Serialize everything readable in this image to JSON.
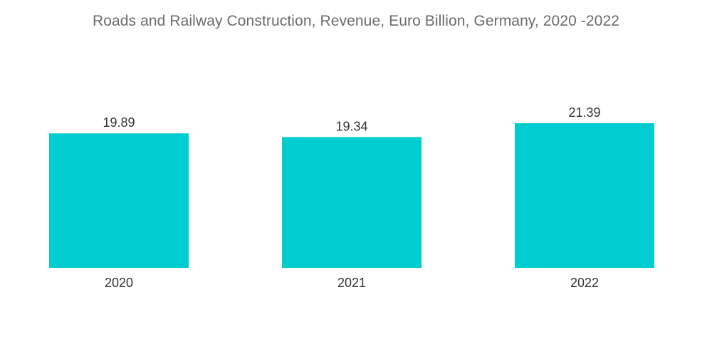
{
  "chart_data": {
    "type": "bar",
    "title": "Roads and Railway Construction, Revenue, Euro Billion, Germany, 2020 -2022",
    "categories": [
      "2020",
      "2021",
      "2022"
    ],
    "values": [
      19.89,
      19.34,
      21.39
    ],
    "data_labels": [
      "19.89",
      "19.34",
      "21.39"
    ],
    "xlabel": "",
    "ylabel": "",
    "ylim": [
      0,
      21.39
    ],
    "grid": false,
    "legend": "none",
    "bar_color": "#00CDD0",
    "title_color": "#6b6b6b",
    "label_color": "#333333"
  }
}
